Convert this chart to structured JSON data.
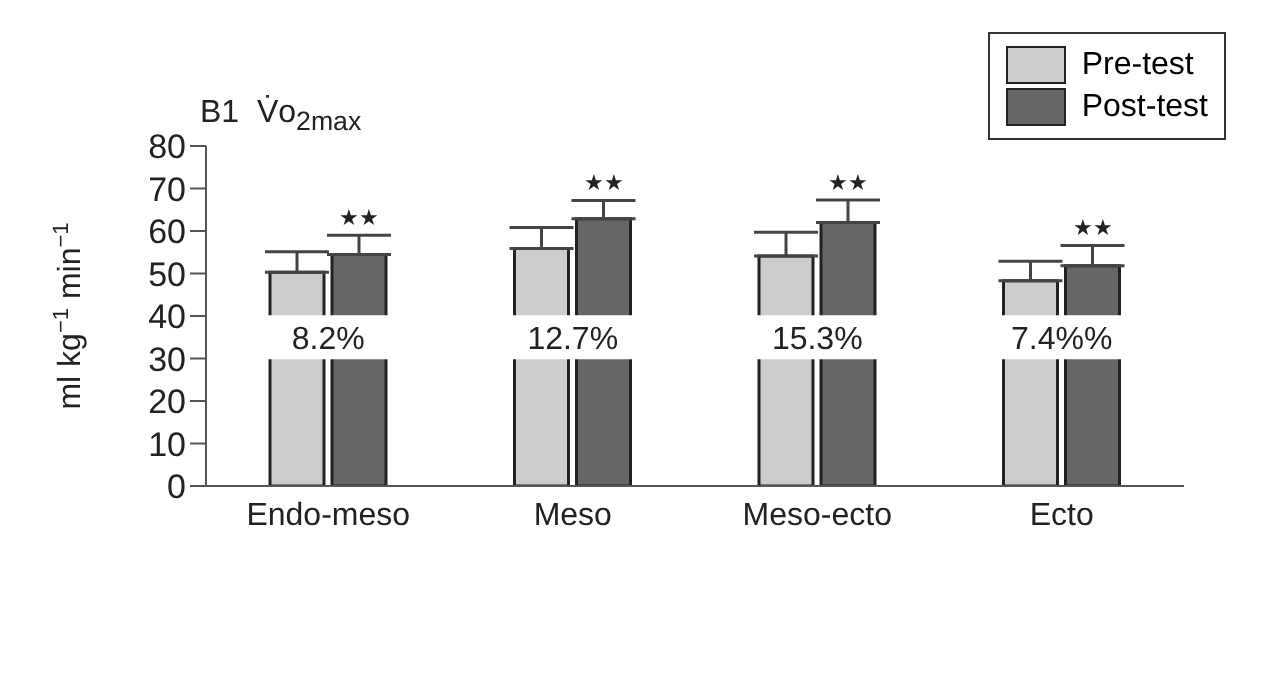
{
  "chart_data": {
    "type": "bar",
    "title": "B1  V̇o$_{2max}$",
    "ylabel": "ml kg$^{−1}$ min$^{−1}$",
    "categories": [
      "Endo-meso",
      "Meso",
      "Meso-ecto",
      "Ecto"
    ],
    "series": [
      {
        "name": "Pre-test",
        "color": "#cccccc",
        "values": [
          50.3,
          55.9,
          54.1,
          48.3
        ],
        "errors": [
          4.8,
          4.9,
          5.6,
          4.6
        ]
      },
      {
        "name": "Post-test",
        "color": "#666666",
        "values": [
          54.5,
          62.9,
          62.0,
          51.8
        ],
        "errors": [
          4.5,
          4.3,
          5.3,
          4.8
        ]
      }
    ],
    "ylim": [
      0,
      80
    ],
    "yticks": [
      0,
      10,
      20,
      30,
      40,
      50,
      60,
      70,
      80
    ],
    "grid": false,
    "legend": "top right",
    "annotations": [
      {
        "text": "8.2%",
        "x": "Endo-meso",
        "y": 35
      },
      {
        "text": "12.7%",
        "x": "Meso",
        "y": 35
      },
      {
        "text": "15.3%",
        "x": "Meso-ecto",
        "y": 35
      },
      {
        "text": "7.4%%",
        "x": "Ecto",
        "y": 35
      },
      {
        "text": "★★",
        "x": "Endo-meso",
        "y": 54.5
      },
      {
        "text": "★★",
        "x": "Meso",
        "y": 62.9
      },
      {
        "text": "★★",
        "x": "Meso-ecto",
        "y": 62.0
      },
      {
        "text": "★★",
        "x": "Ecto",
        "y": 51.8
      }
    ]
  }
}
